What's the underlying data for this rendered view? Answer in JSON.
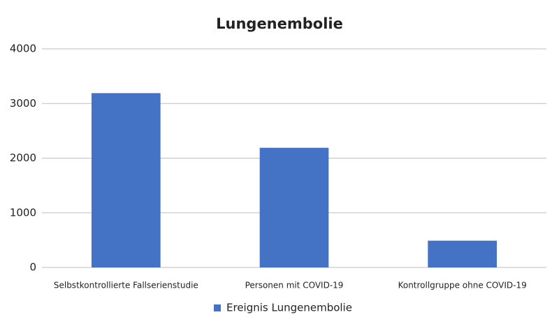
{
  "chart_data": {
    "type": "bar",
    "title": "Lungenembolie",
    "categories": [
      "Selbstkontrollierte Fallserienstudie",
      "Personen mit COVID-19",
      "Kontrollgruppe ohne COVID-19"
    ],
    "series": [
      {
        "name": "Ereignis Lungenembolie",
        "color": "#4472c4",
        "values": [
          3190,
          2190,
          490
        ]
      }
    ],
    "ylim": [
      0,
      4000
    ],
    "yticks": [
      0,
      1000,
      2000,
      3000,
      4000
    ],
    "grid": true,
    "legend": "bottom"
  }
}
